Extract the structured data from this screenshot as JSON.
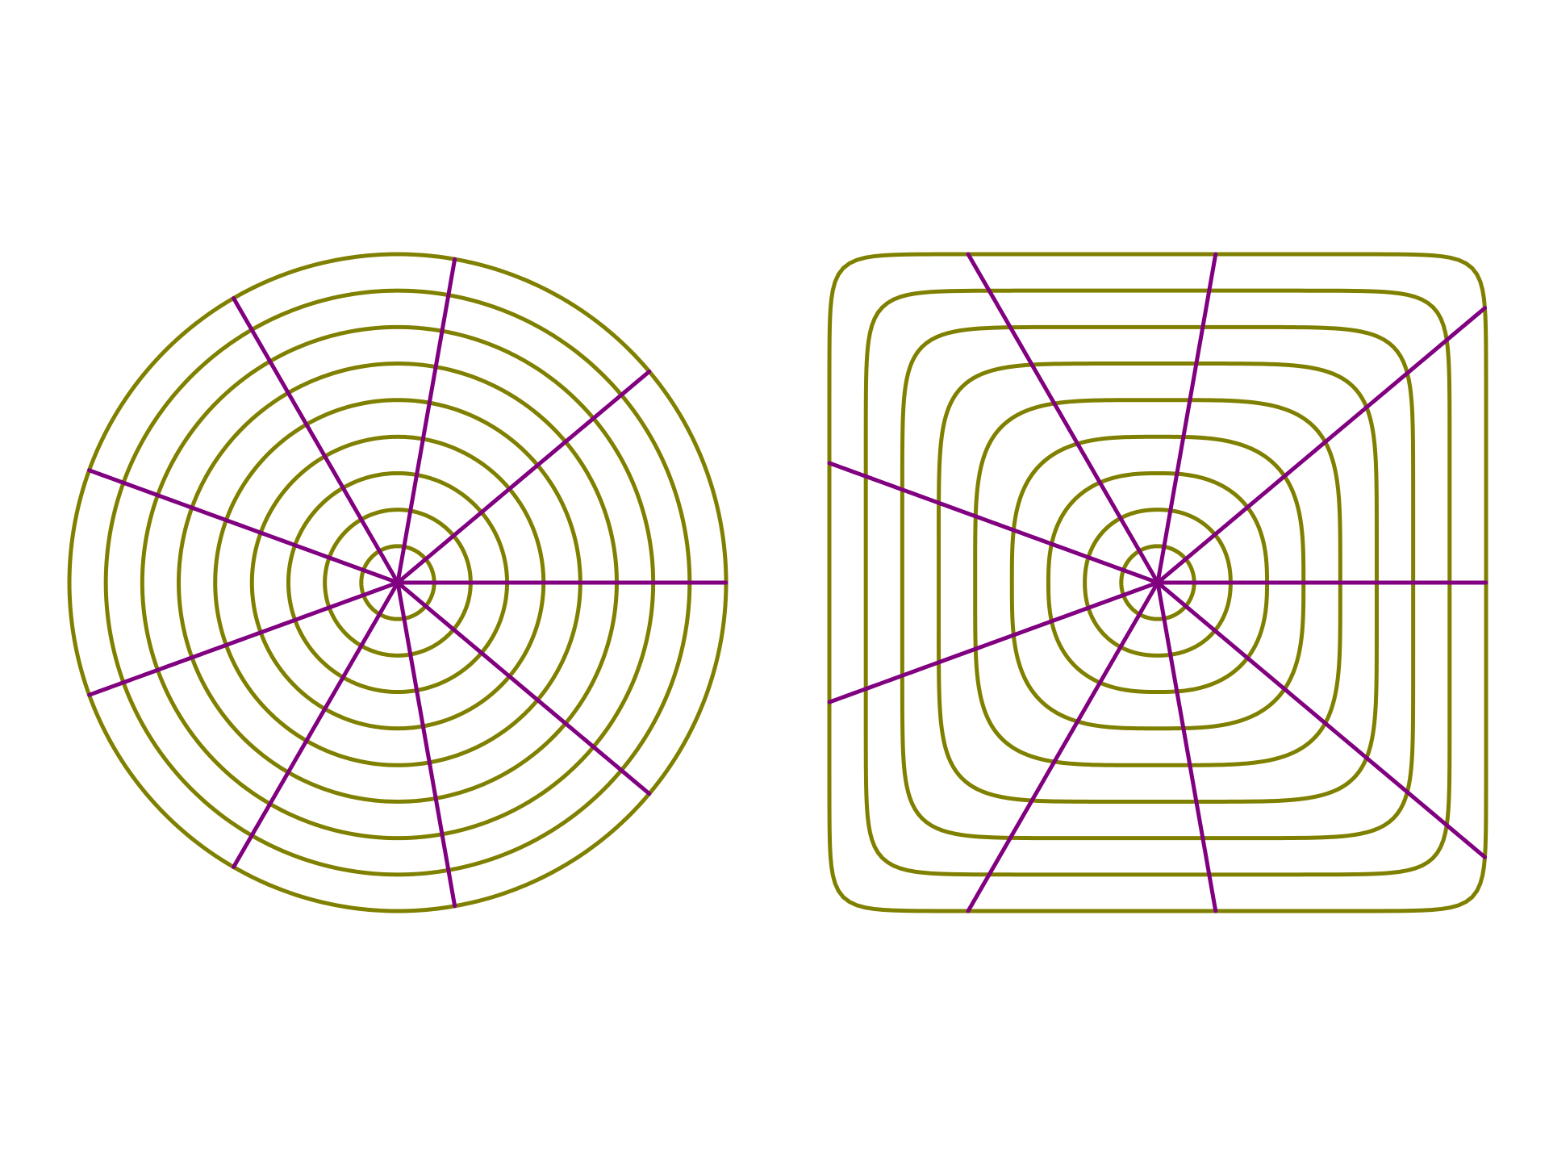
{
  "figure": {
    "description_free": true,
    "colors": {
      "ring": "#808000",
      "spoke": "#800080",
      "background": "#ffffff"
    },
    "panels": [
      {
        "name": "circle-panel",
        "mapping": "disk",
        "ring_count": 9,
        "ring_fractions": [
          0.111,
          0.222,
          0.333,
          0.444,
          0.556,
          0.667,
          0.778,
          0.889,
          1.0
        ],
        "spoke_count": 9,
        "spoke_angles_deg": [
          0,
          40,
          80,
          120,
          160,
          200,
          240,
          280,
          320
        ]
      },
      {
        "name": "square-panel",
        "mapping": "squircle",
        "ring_count": 9,
        "ring_fractions": [
          0.111,
          0.222,
          0.333,
          0.444,
          0.556,
          0.667,
          0.778,
          0.889,
          1.0
        ],
        "spoke_count": 9,
        "spoke_angles_deg": [
          0,
          40,
          80,
          120,
          160,
          200,
          240,
          280,
          320
        ]
      }
    ]
  }
}
